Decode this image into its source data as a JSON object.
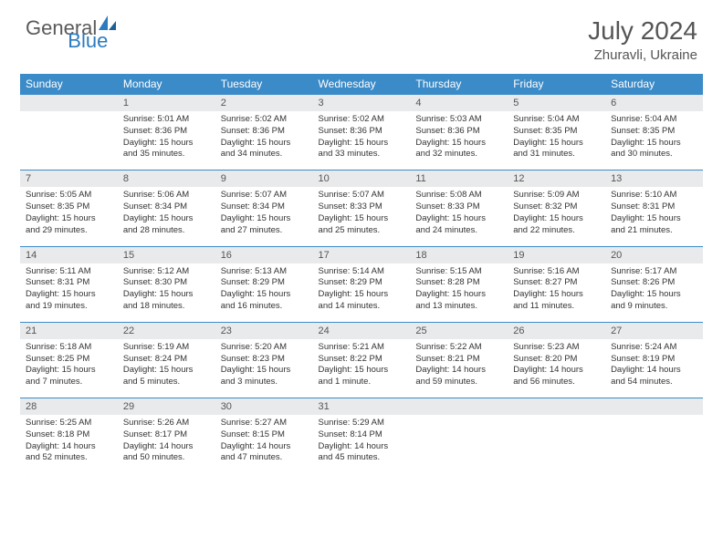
{
  "brand": {
    "text1": "General",
    "text2": "Blue"
  },
  "title": "July 2024",
  "location": "Zhuravli, Ukraine",
  "colors": {
    "header_bg": "#3b8bc9",
    "header_fg": "#ffffff",
    "daynum_bg": "#e9eaeb",
    "rule": "#3b8bc9",
    "brand_gray": "#5a5a5a",
    "brand_blue": "#2b7bbf"
  },
  "day_names": [
    "Sunday",
    "Monday",
    "Tuesday",
    "Wednesday",
    "Thursday",
    "Friday",
    "Saturday"
  ],
  "weeks": [
    [
      {
        "n": "",
        "sr": "",
        "ss": "",
        "dl": ""
      },
      {
        "n": "1",
        "sr": "5:01 AM",
        "ss": "8:36 PM",
        "dl": "15 hours and 35 minutes."
      },
      {
        "n": "2",
        "sr": "5:02 AM",
        "ss": "8:36 PM",
        "dl": "15 hours and 34 minutes."
      },
      {
        "n": "3",
        "sr": "5:02 AM",
        "ss": "8:36 PM",
        "dl": "15 hours and 33 minutes."
      },
      {
        "n": "4",
        "sr": "5:03 AM",
        "ss": "8:36 PM",
        "dl": "15 hours and 32 minutes."
      },
      {
        "n": "5",
        "sr": "5:04 AM",
        "ss": "8:35 PM",
        "dl": "15 hours and 31 minutes."
      },
      {
        "n": "6",
        "sr": "5:04 AM",
        "ss": "8:35 PM",
        "dl": "15 hours and 30 minutes."
      }
    ],
    [
      {
        "n": "7",
        "sr": "5:05 AM",
        "ss": "8:35 PM",
        "dl": "15 hours and 29 minutes."
      },
      {
        "n": "8",
        "sr": "5:06 AM",
        "ss": "8:34 PM",
        "dl": "15 hours and 28 minutes."
      },
      {
        "n": "9",
        "sr": "5:07 AM",
        "ss": "8:34 PM",
        "dl": "15 hours and 27 minutes."
      },
      {
        "n": "10",
        "sr": "5:07 AM",
        "ss": "8:33 PM",
        "dl": "15 hours and 25 minutes."
      },
      {
        "n": "11",
        "sr": "5:08 AM",
        "ss": "8:33 PM",
        "dl": "15 hours and 24 minutes."
      },
      {
        "n": "12",
        "sr": "5:09 AM",
        "ss": "8:32 PM",
        "dl": "15 hours and 22 minutes."
      },
      {
        "n": "13",
        "sr": "5:10 AM",
        "ss": "8:31 PM",
        "dl": "15 hours and 21 minutes."
      }
    ],
    [
      {
        "n": "14",
        "sr": "5:11 AM",
        "ss": "8:31 PM",
        "dl": "15 hours and 19 minutes."
      },
      {
        "n": "15",
        "sr": "5:12 AM",
        "ss": "8:30 PM",
        "dl": "15 hours and 18 minutes."
      },
      {
        "n": "16",
        "sr": "5:13 AM",
        "ss": "8:29 PM",
        "dl": "15 hours and 16 minutes."
      },
      {
        "n": "17",
        "sr": "5:14 AM",
        "ss": "8:29 PM",
        "dl": "15 hours and 14 minutes."
      },
      {
        "n": "18",
        "sr": "5:15 AM",
        "ss": "8:28 PM",
        "dl": "15 hours and 13 minutes."
      },
      {
        "n": "19",
        "sr": "5:16 AM",
        "ss": "8:27 PM",
        "dl": "15 hours and 11 minutes."
      },
      {
        "n": "20",
        "sr": "5:17 AM",
        "ss": "8:26 PM",
        "dl": "15 hours and 9 minutes."
      }
    ],
    [
      {
        "n": "21",
        "sr": "5:18 AM",
        "ss": "8:25 PM",
        "dl": "15 hours and 7 minutes."
      },
      {
        "n": "22",
        "sr": "5:19 AM",
        "ss": "8:24 PM",
        "dl": "15 hours and 5 minutes."
      },
      {
        "n": "23",
        "sr": "5:20 AM",
        "ss": "8:23 PM",
        "dl": "15 hours and 3 minutes."
      },
      {
        "n": "24",
        "sr": "5:21 AM",
        "ss": "8:22 PM",
        "dl": "15 hours and 1 minute."
      },
      {
        "n": "25",
        "sr": "5:22 AM",
        "ss": "8:21 PM",
        "dl": "14 hours and 59 minutes."
      },
      {
        "n": "26",
        "sr": "5:23 AM",
        "ss": "8:20 PM",
        "dl": "14 hours and 56 minutes."
      },
      {
        "n": "27",
        "sr": "5:24 AM",
        "ss": "8:19 PM",
        "dl": "14 hours and 54 minutes."
      }
    ],
    [
      {
        "n": "28",
        "sr": "5:25 AM",
        "ss": "8:18 PM",
        "dl": "14 hours and 52 minutes."
      },
      {
        "n": "29",
        "sr": "5:26 AM",
        "ss": "8:17 PM",
        "dl": "14 hours and 50 minutes."
      },
      {
        "n": "30",
        "sr": "5:27 AM",
        "ss": "8:15 PM",
        "dl": "14 hours and 47 minutes."
      },
      {
        "n": "31",
        "sr": "5:29 AM",
        "ss": "8:14 PM",
        "dl": "14 hours and 45 minutes."
      },
      {
        "n": "",
        "sr": "",
        "ss": "",
        "dl": ""
      },
      {
        "n": "",
        "sr": "",
        "ss": "",
        "dl": ""
      },
      {
        "n": "",
        "sr": "",
        "ss": "",
        "dl": ""
      }
    ]
  ],
  "labels": {
    "sunrise": "Sunrise:",
    "sunset": "Sunset:",
    "daylight": "Daylight:"
  }
}
